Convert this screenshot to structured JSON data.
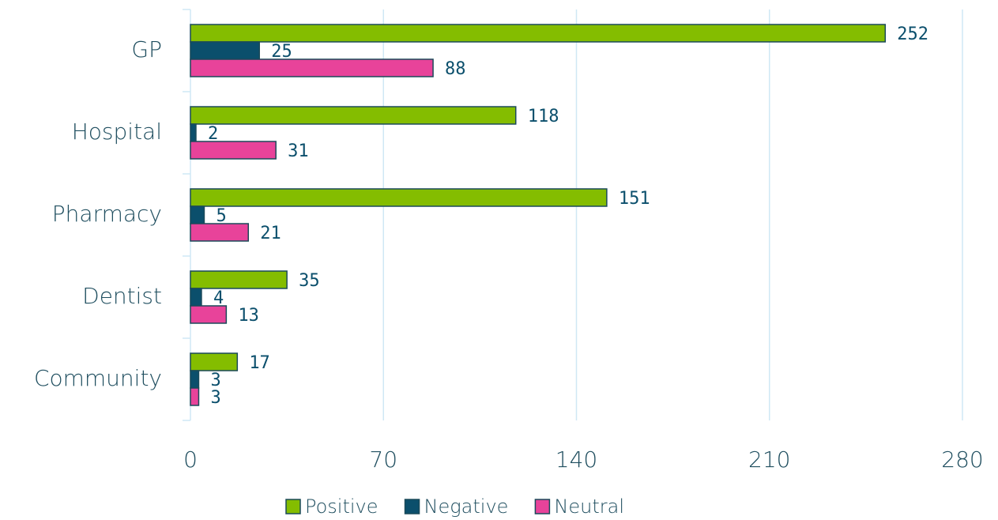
{
  "chart_data": {
    "type": "bar",
    "orientation": "horizontal",
    "categories": [
      "GP",
      "Hospital",
      "Pharmacy",
      "Dentist",
      "Community"
    ],
    "series": [
      {
        "name": "Positive",
        "color": "#84bd00",
        "values": [
          252,
          118,
          151,
          35,
          17
        ]
      },
      {
        "name": "Negative",
        "color": "#0b4f6c",
        "values": [
          25,
          2,
          5,
          4,
          3
        ]
      },
      {
        "name": "Neutral",
        "color": "#e8439a",
        "values": [
          88,
          31,
          21,
          13,
          3
        ]
      }
    ],
    "xlim": [
      0,
      280
    ],
    "xticks": [
      0,
      70,
      140,
      210,
      280
    ],
    "grid": true,
    "legend": "bottom"
  }
}
